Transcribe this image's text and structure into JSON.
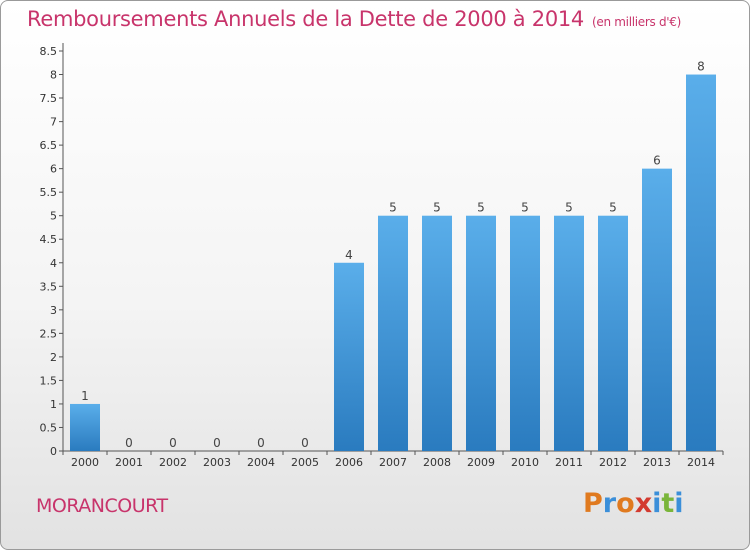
{
  "chart_data": {
    "type": "bar",
    "title": "Remboursements Annuels de la Dette de 2000 à 2014",
    "unit_label": "(en milliers d'€)",
    "categories": [
      "2000",
      "2001",
      "2002",
      "2003",
      "2004",
      "2005",
      "2006",
      "2007",
      "2008",
      "2009",
      "2010",
      "2011",
      "2012",
      "2013",
      "2014"
    ],
    "values": [
      1,
      0,
      0,
      0,
      0,
      0,
      4,
      5,
      5,
      5,
      5,
      5,
      5,
      6,
      8
    ],
    "ylim": [
      0,
      8.5
    ],
    "yticks": [
      "0",
      "0.5",
      "1",
      "1.5",
      "2",
      "2.5",
      "3",
      "3.5",
      "4",
      "4.5",
      "5",
      "5.5",
      "6",
      "6.5",
      "7",
      "7.5",
      "8",
      "8.5"
    ],
    "xlabel": "",
    "ylabel": "",
    "bar_color": "#3a8fd6"
  },
  "commune": "MORANCOURT",
  "brand": {
    "letters": [
      "P",
      "r",
      "o",
      "x",
      "i",
      "t",
      "i"
    ],
    "colors": [
      "#e07a1f",
      "#3b8fd9",
      "#e07a1f",
      "#d33a2f",
      "#3b8fd9",
      "#7ab53a",
      "#3b8fd9"
    ]
  }
}
